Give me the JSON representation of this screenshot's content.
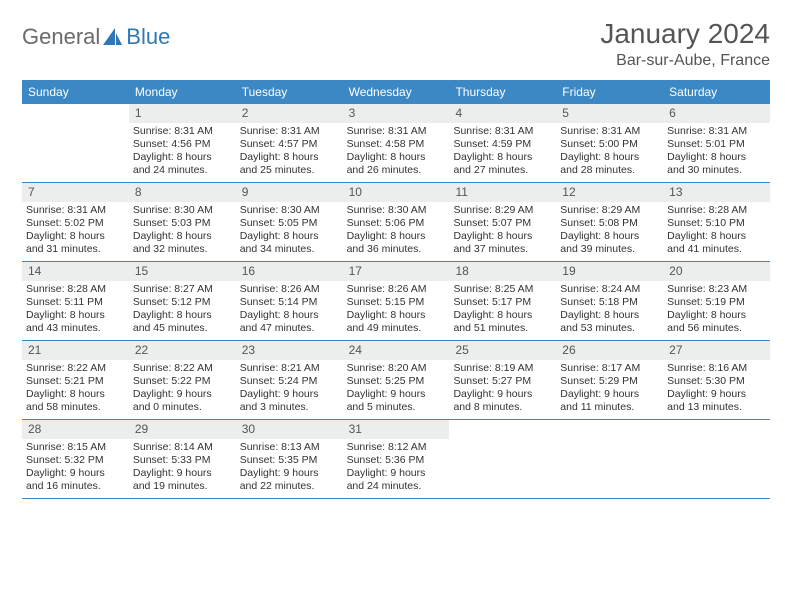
{
  "brand": {
    "part1": "General",
    "part2": "Blue"
  },
  "title": "January 2024",
  "location": "Bar-sur-Aube, France",
  "colors": {
    "header_bg": "#3b88c4",
    "header_text": "#ffffff",
    "daynum_bg": "#eceeee",
    "row_border": "#3b88c4",
    "body_text": "#333333",
    "title_text": "#555555"
  },
  "weekdays": [
    "Sunday",
    "Monday",
    "Tuesday",
    "Wednesday",
    "Thursday",
    "Friday",
    "Saturday"
  ],
  "weeks": [
    [
      {
        "day": "",
        "sunrise": "",
        "sunset": "",
        "daylight": ""
      },
      {
        "day": "1",
        "sunrise": "Sunrise: 8:31 AM",
        "sunset": "Sunset: 4:56 PM",
        "daylight": "Daylight: 8 hours and 24 minutes."
      },
      {
        "day": "2",
        "sunrise": "Sunrise: 8:31 AM",
        "sunset": "Sunset: 4:57 PM",
        "daylight": "Daylight: 8 hours and 25 minutes."
      },
      {
        "day": "3",
        "sunrise": "Sunrise: 8:31 AM",
        "sunset": "Sunset: 4:58 PM",
        "daylight": "Daylight: 8 hours and 26 minutes."
      },
      {
        "day": "4",
        "sunrise": "Sunrise: 8:31 AM",
        "sunset": "Sunset: 4:59 PM",
        "daylight": "Daylight: 8 hours and 27 minutes."
      },
      {
        "day": "5",
        "sunrise": "Sunrise: 8:31 AM",
        "sunset": "Sunset: 5:00 PM",
        "daylight": "Daylight: 8 hours and 28 minutes."
      },
      {
        "day": "6",
        "sunrise": "Sunrise: 8:31 AM",
        "sunset": "Sunset: 5:01 PM",
        "daylight": "Daylight: 8 hours and 30 minutes."
      }
    ],
    [
      {
        "day": "7",
        "sunrise": "Sunrise: 8:31 AM",
        "sunset": "Sunset: 5:02 PM",
        "daylight": "Daylight: 8 hours and 31 minutes."
      },
      {
        "day": "8",
        "sunrise": "Sunrise: 8:30 AM",
        "sunset": "Sunset: 5:03 PM",
        "daylight": "Daylight: 8 hours and 32 minutes."
      },
      {
        "day": "9",
        "sunrise": "Sunrise: 8:30 AM",
        "sunset": "Sunset: 5:05 PM",
        "daylight": "Daylight: 8 hours and 34 minutes."
      },
      {
        "day": "10",
        "sunrise": "Sunrise: 8:30 AM",
        "sunset": "Sunset: 5:06 PM",
        "daylight": "Daylight: 8 hours and 36 minutes."
      },
      {
        "day": "11",
        "sunrise": "Sunrise: 8:29 AM",
        "sunset": "Sunset: 5:07 PM",
        "daylight": "Daylight: 8 hours and 37 minutes."
      },
      {
        "day": "12",
        "sunrise": "Sunrise: 8:29 AM",
        "sunset": "Sunset: 5:08 PM",
        "daylight": "Daylight: 8 hours and 39 minutes."
      },
      {
        "day": "13",
        "sunrise": "Sunrise: 8:28 AM",
        "sunset": "Sunset: 5:10 PM",
        "daylight": "Daylight: 8 hours and 41 minutes."
      }
    ],
    [
      {
        "day": "14",
        "sunrise": "Sunrise: 8:28 AM",
        "sunset": "Sunset: 5:11 PM",
        "daylight": "Daylight: 8 hours and 43 minutes."
      },
      {
        "day": "15",
        "sunrise": "Sunrise: 8:27 AM",
        "sunset": "Sunset: 5:12 PM",
        "daylight": "Daylight: 8 hours and 45 minutes."
      },
      {
        "day": "16",
        "sunrise": "Sunrise: 8:26 AM",
        "sunset": "Sunset: 5:14 PM",
        "daylight": "Daylight: 8 hours and 47 minutes."
      },
      {
        "day": "17",
        "sunrise": "Sunrise: 8:26 AM",
        "sunset": "Sunset: 5:15 PM",
        "daylight": "Daylight: 8 hours and 49 minutes."
      },
      {
        "day": "18",
        "sunrise": "Sunrise: 8:25 AM",
        "sunset": "Sunset: 5:17 PM",
        "daylight": "Daylight: 8 hours and 51 minutes."
      },
      {
        "day": "19",
        "sunrise": "Sunrise: 8:24 AM",
        "sunset": "Sunset: 5:18 PM",
        "daylight": "Daylight: 8 hours and 53 minutes."
      },
      {
        "day": "20",
        "sunrise": "Sunrise: 8:23 AM",
        "sunset": "Sunset: 5:19 PM",
        "daylight": "Daylight: 8 hours and 56 minutes."
      }
    ],
    [
      {
        "day": "21",
        "sunrise": "Sunrise: 8:22 AM",
        "sunset": "Sunset: 5:21 PM",
        "daylight": "Daylight: 8 hours and 58 minutes."
      },
      {
        "day": "22",
        "sunrise": "Sunrise: 8:22 AM",
        "sunset": "Sunset: 5:22 PM",
        "daylight": "Daylight: 9 hours and 0 minutes."
      },
      {
        "day": "23",
        "sunrise": "Sunrise: 8:21 AM",
        "sunset": "Sunset: 5:24 PM",
        "daylight": "Daylight: 9 hours and 3 minutes."
      },
      {
        "day": "24",
        "sunrise": "Sunrise: 8:20 AM",
        "sunset": "Sunset: 5:25 PM",
        "daylight": "Daylight: 9 hours and 5 minutes."
      },
      {
        "day": "25",
        "sunrise": "Sunrise: 8:19 AM",
        "sunset": "Sunset: 5:27 PM",
        "daylight": "Daylight: 9 hours and 8 minutes."
      },
      {
        "day": "26",
        "sunrise": "Sunrise: 8:17 AM",
        "sunset": "Sunset: 5:29 PM",
        "daylight": "Daylight: 9 hours and 11 minutes."
      },
      {
        "day": "27",
        "sunrise": "Sunrise: 8:16 AM",
        "sunset": "Sunset: 5:30 PM",
        "daylight": "Daylight: 9 hours and 13 minutes."
      }
    ],
    [
      {
        "day": "28",
        "sunrise": "Sunrise: 8:15 AM",
        "sunset": "Sunset: 5:32 PM",
        "daylight": "Daylight: 9 hours and 16 minutes."
      },
      {
        "day": "29",
        "sunrise": "Sunrise: 8:14 AM",
        "sunset": "Sunset: 5:33 PM",
        "daylight": "Daylight: 9 hours and 19 minutes."
      },
      {
        "day": "30",
        "sunrise": "Sunrise: 8:13 AM",
        "sunset": "Sunset: 5:35 PM",
        "daylight": "Daylight: 9 hours and 22 minutes."
      },
      {
        "day": "31",
        "sunrise": "Sunrise: 8:12 AM",
        "sunset": "Sunset: 5:36 PM",
        "daylight": "Daylight: 9 hours and 24 minutes."
      },
      {
        "day": "",
        "sunrise": "",
        "sunset": "",
        "daylight": ""
      },
      {
        "day": "",
        "sunrise": "",
        "sunset": "",
        "daylight": ""
      },
      {
        "day": "",
        "sunrise": "",
        "sunset": "",
        "daylight": ""
      }
    ]
  ]
}
